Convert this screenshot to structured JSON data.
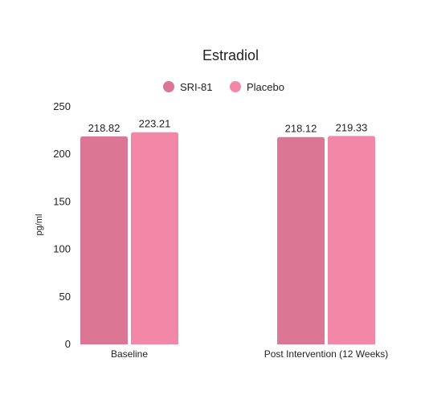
{
  "chart_data": {
    "type": "bar",
    "title": "Estradiol",
    "xlabel": "",
    "ylabel": "pg/ml",
    "categories": [
      "Baseline",
      "Post Intervention (12 Weeks)"
    ],
    "series": [
      {
        "name": "SRI-81",
        "color": "#db7695",
        "values": [
          218.82,
          218.12
        ],
        "labels": [
          "218.82",
          "218.12"
        ]
      },
      {
        "name": "Placebo",
        "color": "#f387a7",
        "values": [
          223.21,
          219.33
        ],
        "labels": [
          "223.21",
          "219.33"
        ]
      }
    ],
    "ylim": [
      0,
      250
    ],
    "yticks": [
      0,
      50,
      100,
      150,
      200,
      250
    ],
    "grid": false,
    "legend_position": "top-center"
  }
}
